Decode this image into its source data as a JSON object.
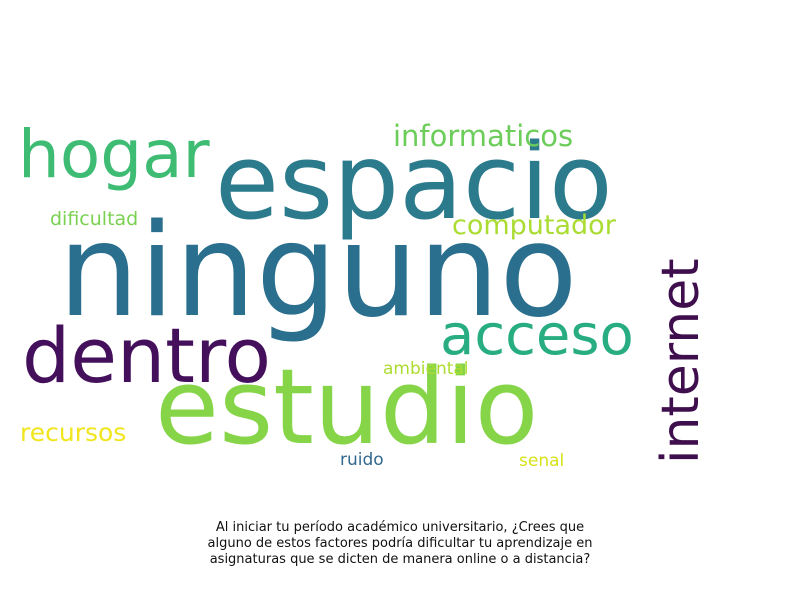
{
  "word_cloud": {
    "words": [
      {
        "text": "ninguno",
        "color": "#2b6f8e"
      },
      {
        "text": "espacio",
        "color": "#2b7b8c"
      },
      {
        "text": "estudio",
        "color": "#86d549"
      },
      {
        "text": "dentro",
        "color": "#440f5b"
      },
      {
        "text": "hogar",
        "color": "#3fbc74"
      },
      {
        "text": "acceso",
        "color": "#27ad81"
      },
      {
        "text": "internet",
        "color": "#3e0e4d"
      },
      {
        "text": "informaticos",
        "color": "#6ccd5a"
      },
      {
        "text": "computador",
        "color": "#aadc32"
      },
      {
        "text": "dificultad",
        "color": "#7ad151"
      },
      {
        "text": "recursos",
        "color": "#f0e51f"
      },
      {
        "text": "ambiental",
        "color": "#addc30"
      },
      {
        "text": "ruido",
        "color": "#31688e"
      },
      {
        "text": "senal",
        "color": "#d7e219"
      }
    ]
  },
  "caption": {
    "line1": "Al iniciar tu período académico universitario, ¿Crees que",
    "line2": "alguno de estos factores podría dificultar tu aprendizaje en",
    "line3": "asignaturas que se dicten de manera online o a distancia?"
  }
}
